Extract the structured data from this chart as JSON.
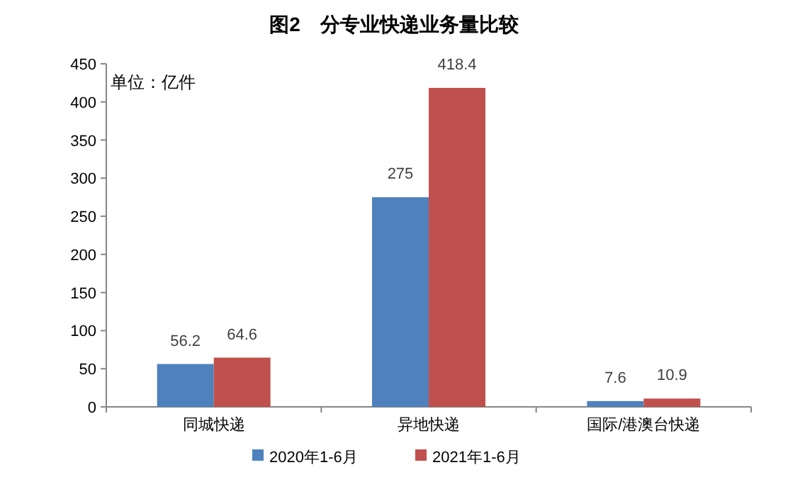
{
  "chart_data": {
    "type": "bar",
    "title": "图2　分专业快递业务量比较",
    "categories": [
      "同城快递",
      "异地快递",
      "国际/港澳台快递"
    ],
    "series": [
      {
        "name": "2020年1-6月",
        "color": "#4f81bd",
        "values": [
          56.2,
          275,
          7.6
        ]
      },
      {
        "name": "2021年1-6月",
        "color": "#c0504d",
        "values": [
          64.6,
          418.4,
          10.9
        ]
      }
    ],
    "ylim": [
      0,
      450
    ],
    "yticks": [
      0,
      50,
      100,
      150,
      200,
      250,
      300,
      350,
      400,
      450
    ],
    "data_labels": true,
    "legend": "bottom",
    "annotations": [
      "单位：亿件"
    ]
  }
}
